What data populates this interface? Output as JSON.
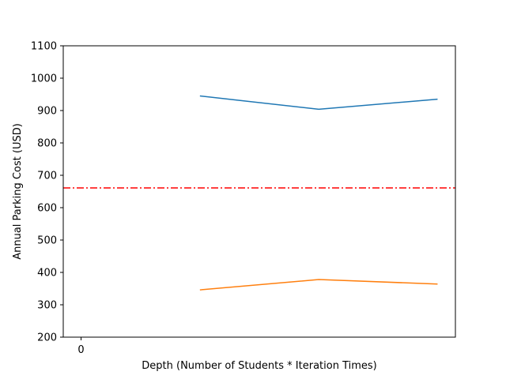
{
  "chart_data": {
    "type": "line",
    "title": "",
    "xlabel": "Depth (Number of Students * Iteration Times)",
    "ylabel": "Annual Parking Cost (USD)",
    "xlim": [
      -0.15,
      3.15
    ],
    "ylim": [
      200,
      1100
    ],
    "x_ticks": [
      0
    ],
    "x_tick_labels": [
      "0"
    ],
    "y_ticks": [
      200,
      300,
      400,
      500,
      600,
      700,
      800,
      900,
      1000,
      1100
    ],
    "y_tick_labels": [
      "200",
      "300",
      "400",
      "500",
      "600",
      "700",
      "800",
      "900",
      "1000",
      "1100"
    ],
    "grid": false,
    "legend": "none",
    "series": [
      {
        "color": "#1f77b4",
        "x": [
          1,
          2,
          3
        ],
        "y": [
          945,
          904,
          935
        ]
      },
      {
        "color": "#ff7f0e",
        "x": [
          1,
          2,
          3
        ],
        "y": [
          346,
          378,
          364
        ]
      }
    ],
    "reference_lines": [
      {
        "orientation": "horizontal",
        "y": 661,
        "color": "#ff0000",
        "style": "dash-dot"
      }
    ]
  }
}
